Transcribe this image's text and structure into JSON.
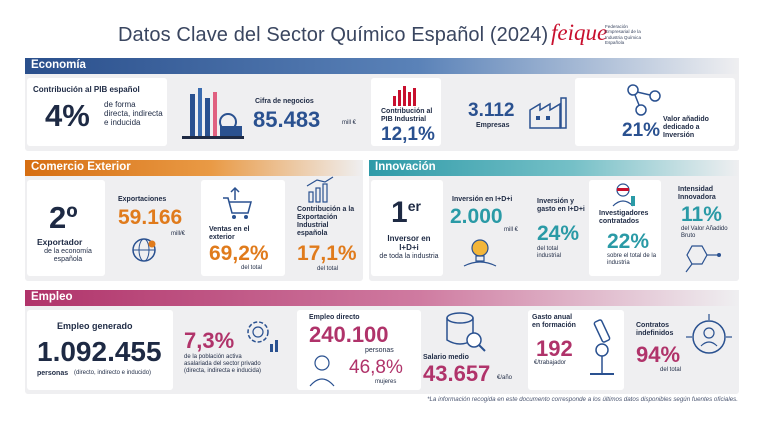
{
  "title": "Datos Clave del Sector Químico Español (2024)",
  "logo": {
    "word": "feique",
    "tagline": "Federación Empresarial de la Industria Química Española"
  },
  "economia": {
    "header": "Economía",
    "pib": {
      "label": "Contribución al PIB español",
      "value": "4%",
      "desc": "de forma directa, indirecta e inducida"
    },
    "negocios": {
      "label": "Cifra de negocios",
      "value": "85.483",
      "unit": "mill €"
    },
    "pib_industrial": {
      "label": "Contribución al PIB Industrial",
      "value": "12,1%"
    },
    "empresas": {
      "value": "3.112",
      "label": "Empresas"
    },
    "vab": {
      "value": "21%",
      "label": "Valor añadido dedicado a Inversión"
    }
  },
  "comercio": {
    "header": "Comercio Exterior",
    "rank": {
      "value": "2º",
      "label": "Exportador",
      "desc": "de la economía española"
    },
    "exportaciones": {
      "label": "Exportaciones",
      "value": "59.166",
      "unit": "mill/€"
    },
    "ventas": {
      "label": "Ventas en el exterior",
      "value": "69,2%",
      "desc": "del total"
    },
    "contribucion": {
      "label": "Contribución a la Exportación Industrial española",
      "value": "17,1%",
      "desc": "del total"
    }
  },
  "innovacion": {
    "header": "Innovación",
    "rank": {
      "value": "1",
      "sup": "er",
      "label": "Inversor en I+D+i",
      "desc": "de toda la industria"
    },
    "inversion": {
      "label": "Inversión en I+D+i",
      "value": "2.000",
      "unit": "mill €"
    },
    "gasto": {
      "label": "Inversión y gasto en I+D+i",
      "value": "24%",
      "desc": "del total industrial"
    },
    "investigadores": {
      "label": "Investigadores contratados",
      "value": "22%",
      "desc": "sobre el total de la industria"
    },
    "intensidad": {
      "label": "Intensidad Innovadora",
      "value": "11%",
      "desc": "del Valor Añadido Bruto"
    }
  },
  "empleo": {
    "header": "Empleo",
    "generado": {
      "label": "Empleo generado",
      "value": "1.092.455",
      "unit": "personas",
      "desc": "(directo, indirecto e inducido)"
    },
    "poblacion": {
      "value": "7,3%",
      "desc": "de la población activa asalariada del sector privado (directa, indirecta e inducida)"
    },
    "directo": {
      "label": "Empleo directo",
      "value": "240.100",
      "unit": "personas",
      "mujeres": "46,8%",
      "mujeres_label": "mujeres"
    },
    "salario": {
      "label": "Salario medio",
      "value": "43.657",
      "unit": "€/año"
    },
    "formacion": {
      "label": "Gasto anual en formación",
      "value": "192",
      "unit": "€/trabajador"
    },
    "indefinidos": {
      "label": "Contratos indefinidos",
      "value": "94%",
      "desc": "del total"
    }
  },
  "footer": "*La información recogida en este documento corresponde a los últimos datos disponibles según fuentes oficiales."
}
